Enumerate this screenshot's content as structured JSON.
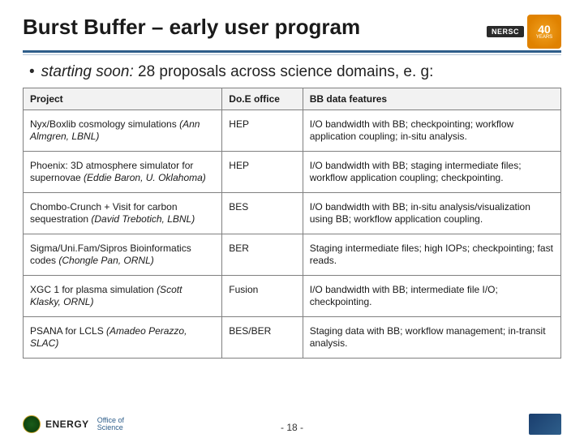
{
  "title": "Burst Buffer – early user program",
  "badge": {
    "nersc": "NERSC",
    "num": "40",
    "years": "YEARS"
  },
  "bullet": {
    "em": "starting soon:",
    "rest": " 28 proposals across science domains, e. g:"
  },
  "table": {
    "headers": [
      "Project",
      "Do.E office",
      "BB data features"
    ],
    "col_widths": [
      "37%",
      "15%",
      "48%"
    ],
    "rows": [
      {
        "project": "Nyx/Boxlib cosmology simulations ",
        "pi": "(Ann Almgren, LBNL)",
        "office": "HEP",
        "features": "I/O bandwidth with BB; checkpointing; workflow application coupling; in-situ analysis."
      },
      {
        "project": "Phoenix: 3D atmosphere simulator for supernovae ",
        "pi": "(Eddie Baron, U. Oklahoma)",
        "office": "HEP",
        "features": "I/O bandwidth with BB; staging intermediate files; workflow application coupling; checkpointing."
      },
      {
        "project": "Chombo-Crunch  + Visit for carbon sequestration ",
        "pi": "(David Trebotich, LBNL)",
        "office": "BES",
        "features": "I/O bandwidth with BB; in-situ analysis/visualization using BB; workflow application coupling."
      },
      {
        "project": "Sigma/Uni.Fam/Sipros Bioinformatics codes ",
        "pi": "(Chongle Pan, ORNL)",
        "office": "BER",
        "features": "Staging intermediate files; high IOPs; checkpointing; fast reads."
      },
      {
        "project": "XGC 1 for plasma simulation ",
        "pi": "(Scott Klasky, ORNL)",
        "office": "Fusion",
        "features": "I/O bandwidth with BB; intermediate file I/O; checkpointing."
      },
      {
        "project": "PSANA for LCLS ",
        "pi": "(Amadeo Perazzo, SLAC)",
        "office": "BES/BER",
        "features": "Staging data with BB; workflow management; in-transit analysis."
      }
    ]
  },
  "footer": {
    "energy": "ENERGY",
    "office1": "Office of",
    "office2": "Science",
    "page": "- 18 -"
  },
  "colors": {
    "rule": "#2e5e8a",
    "border": "#808080",
    "header_bg": "#f2f2f2"
  }
}
